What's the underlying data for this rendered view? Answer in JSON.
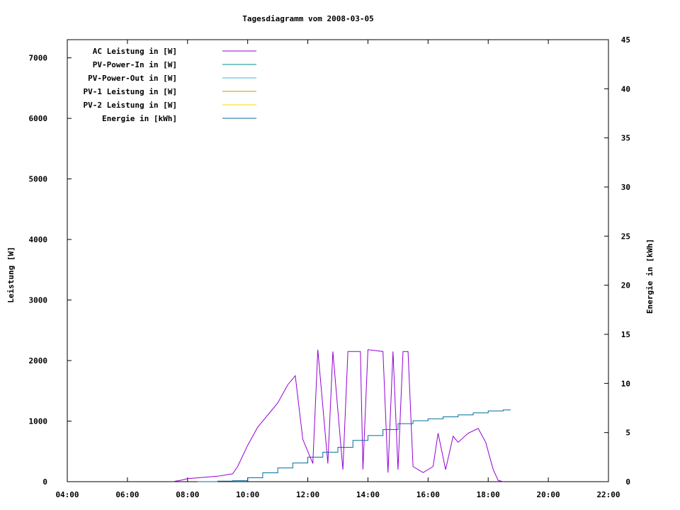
{
  "chart_data": {
    "type": "line",
    "title": "Tagesdiagramm vom 2008-03-05",
    "ylabel": "Leistung [W]",
    "y2label": "Energie in [kWh]",
    "xlim": [
      "04:00",
      "22:00"
    ],
    "ylim": [
      0,
      7300
    ],
    "y2lim": [
      0,
      45
    ],
    "x_ticks": [
      "04:00",
      "06:00",
      "08:00",
      "10:00",
      "12:00",
      "14:00",
      "16:00",
      "18:00",
      "20:00",
      "22:00"
    ],
    "y_ticks": [
      "0",
      "1000",
      "2000",
      "3000",
      "4000",
      "5000",
      "6000",
      "7000"
    ],
    "y2_ticks": [
      "0",
      "5",
      "10",
      "15",
      "20",
      "25",
      "30",
      "35",
      "40",
      "45"
    ],
    "legend_position": "top-left",
    "series": [
      {
        "name": "AC Leistung in [W]",
        "color": "#9400d3",
        "axis": "y1",
        "points": [
          [
            "07:30",
            0
          ],
          [
            "07:45",
            20
          ],
          [
            "08:00",
            50
          ],
          [
            "08:30",
            70
          ],
          [
            "09:00",
            90
          ],
          [
            "09:30",
            130
          ],
          [
            "09:40",
            250
          ],
          [
            "10:00",
            600
          ],
          [
            "10:20",
            900
          ],
          [
            "10:40",
            1100
          ],
          [
            "11:00",
            1300
          ],
          [
            "11:20",
            1600
          ],
          [
            "11:35",
            1750
          ],
          [
            "11:50",
            700
          ],
          [
            "12:10",
            300
          ],
          [
            "12:20",
            2180
          ],
          [
            "12:40",
            300
          ],
          [
            "12:50",
            2150
          ],
          [
            "13:10",
            200
          ],
          [
            "13:20",
            2150
          ],
          [
            "13:45",
            2150
          ],
          [
            "13:50",
            200
          ],
          [
            "14:00",
            2180
          ],
          [
            "14:30",
            2150
          ],
          [
            "14:40",
            150
          ],
          [
            "14:50",
            2150
          ],
          [
            "15:00",
            200
          ],
          [
            "15:10",
            2150
          ],
          [
            "15:20",
            2150
          ],
          [
            "15:30",
            250
          ],
          [
            "15:50",
            150
          ],
          [
            "16:10",
            250
          ],
          [
            "16:20",
            800
          ],
          [
            "16:35",
            200
          ],
          [
            "16:50",
            750
          ],
          [
            "17:00",
            650
          ],
          [
            "17:20",
            800
          ],
          [
            "17:40",
            880
          ],
          [
            "17:55",
            650
          ],
          [
            "18:10",
            200
          ],
          [
            "18:20",
            20
          ],
          [
            "18:30",
            0
          ]
        ]
      },
      {
        "name": "PV-Power-In in [W]",
        "color": "#008b8b",
        "axis": "y1",
        "points": []
      },
      {
        "name": "PV-Power-Out in [W]",
        "color": "#3cb4dc",
        "axis": "y1",
        "points": []
      },
      {
        "name": "PV-1 Leistung in [W]",
        "color": "#c89600",
        "axis": "y1",
        "points": []
      },
      {
        "name": "PV-2 Leistung in [W]",
        "color": "#ffd700",
        "axis": "y1",
        "points": []
      },
      {
        "name": "Energie in [kWh]",
        "color": "#006e9e",
        "axis": "y2",
        "points": [
          [
            "08:20",
            0
          ],
          [
            "09:00",
            0.05
          ],
          [
            "09:30",
            0.1
          ],
          [
            "10:00",
            0.4
          ],
          [
            "10:30",
            0.9
          ],
          [
            "11:00",
            1.4
          ],
          [
            "11:30",
            1.9
          ],
          [
            "12:00",
            2.5
          ],
          [
            "12:30",
            3.0
          ],
          [
            "13:00",
            3.5
          ],
          [
            "13:30",
            4.2
          ],
          [
            "14:00",
            4.7
          ],
          [
            "14:30",
            5.3
          ],
          [
            "15:00",
            5.9
          ],
          [
            "15:30",
            6.2
          ],
          [
            "16:00",
            6.4
          ],
          [
            "16:30",
            6.6
          ],
          [
            "17:00",
            6.8
          ],
          [
            "17:30",
            7.0
          ],
          [
            "18:00",
            7.2
          ],
          [
            "18:30",
            7.3
          ],
          [
            "18:45",
            7.3
          ]
        ]
      }
    ]
  }
}
